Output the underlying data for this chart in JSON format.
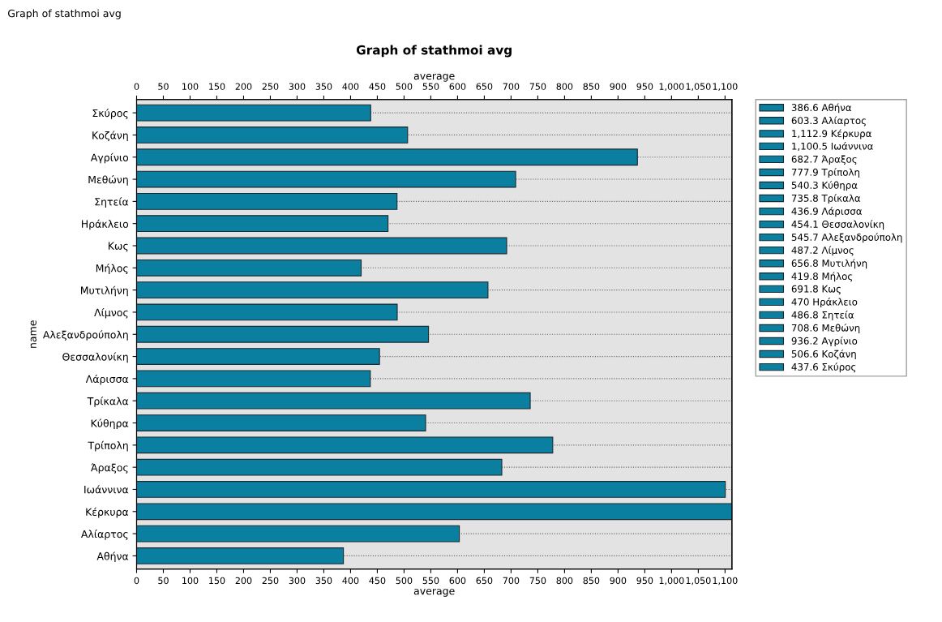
{
  "chart_data": {
    "type": "bar",
    "orientation": "horizontal",
    "title": "Graph of stathmoi avg",
    "xlabel": "average",
    "x2label": "average",
    "ylabel": "name",
    "annotations": [
      "Graph of stathmoi avg"
    ],
    "categories": [
      "Σκύρος",
      "Κοζάνη",
      "Αγρίνιο",
      "Μεθώνη",
      "Σητεία",
      "Ηράκλειο",
      "Κως",
      "Μήλος",
      "Μυτιλήνη",
      "Λίμνος",
      "Αλεξανδρούπολη",
      "Θεσσαλονίκη",
      "Λάρισσα",
      "Τρίκαλα",
      "Κύθηρα",
      "Τρίπολη",
      "Άραξος",
      "Ιωάννινα",
      "Κέρκυρα",
      "Αλίαρτος",
      "Αθήνα"
    ],
    "series": [
      {
        "name": "386.6 Αθήνα",
        "color": "#0a7fa0",
        "values": [
          null,
          null,
          null,
          null,
          null,
          null,
          null,
          null,
          null,
          null,
          null,
          null,
          null,
          null,
          null,
          null,
          null,
          null,
          null,
          null,
          386.6
        ]
      },
      {
        "name": "603.3 Αλίαρτος",
        "color": "#0a7fa0",
        "values": [
          null,
          null,
          null,
          null,
          null,
          null,
          null,
          null,
          null,
          null,
          null,
          null,
          null,
          null,
          null,
          null,
          null,
          null,
          null,
          603.3,
          null
        ]
      },
      {
        "name": "1,112.9 Κέρκυρα",
        "color": "#0a7fa0",
        "values": [
          null,
          null,
          null,
          null,
          null,
          null,
          null,
          null,
          null,
          null,
          null,
          null,
          null,
          null,
          null,
          null,
          null,
          null,
          1112.9,
          null,
          null
        ]
      },
      {
        "name": "1,100.5 Ιωάννινα",
        "color": "#0a7fa0",
        "values": [
          null,
          null,
          null,
          null,
          null,
          null,
          null,
          null,
          null,
          null,
          null,
          null,
          null,
          null,
          null,
          null,
          null,
          1100.5,
          null,
          null,
          null
        ]
      },
      {
        "name": "682.7 Άραξος",
        "color": "#0a7fa0",
        "values": [
          null,
          null,
          null,
          null,
          null,
          null,
          null,
          null,
          null,
          null,
          null,
          null,
          null,
          null,
          null,
          null,
          682.7,
          null,
          null,
          null,
          null
        ]
      },
      {
        "name": "777.9 Τρίπολη",
        "color": "#0a7fa0",
        "values": [
          null,
          null,
          null,
          null,
          null,
          null,
          null,
          null,
          null,
          null,
          null,
          null,
          null,
          null,
          null,
          777.9,
          null,
          null,
          null,
          null,
          null
        ]
      },
      {
        "name": "540.3 Κύθηρα",
        "color": "#0a7fa0",
        "values": [
          null,
          null,
          null,
          null,
          null,
          null,
          null,
          null,
          null,
          null,
          null,
          null,
          null,
          null,
          540.3,
          null,
          null,
          null,
          null,
          null,
          null
        ]
      },
      {
        "name": "735.8 Τρίκαλα",
        "color": "#0a7fa0",
        "values": [
          null,
          null,
          null,
          null,
          null,
          null,
          null,
          null,
          null,
          null,
          null,
          null,
          null,
          735.8,
          null,
          null,
          null,
          null,
          null,
          null,
          null
        ]
      },
      {
        "name": "436.9 Λάρισσα",
        "color": "#0a7fa0",
        "values": [
          null,
          null,
          null,
          null,
          null,
          null,
          null,
          null,
          null,
          null,
          null,
          null,
          436.9,
          null,
          null,
          null,
          null,
          null,
          null,
          null,
          null
        ]
      },
      {
        "name": "454.1 Θεσσαλονίκη",
        "color": "#0a7fa0",
        "values": [
          null,
          null,
          null,
          null,
          null,
          null,
          null,
          null,
          null,
          null,
          null,
          454.1,
          null,
          null,
          null,
          null,
          null,
          null,
          null,
          null,
          null
        ]
      },
      {
        "name": "545.7 Αλεξανδρούπολη",
        "color": "#0a7fa0",
        "values": [
          null,
          null,
          null,
          null,
          null,
          null,
          null,
          null,
          null,
          null,
          545.7,
          null,
          null,
          null,
          null,
          null,
          null,
          null,
          null,
          null,
          null
        ]
      },
      {
        "name": "487.2 Λίμνος",
        "color": "#0a7fa0",
        "values": [
          null,
          null,
          null,
          null,
          null,
          null,
          null,
          null,
          null,
          487.2,
          null,
          null,
          null,
          null,
          null,
          null,
          null,
          null,
          null,
          null,
          null
        ]
      },
      {
        "name": "656.8 Μυτιλήνη",
        "color": "#0a7fa0",
        "values": [
          null,
          null,
          null,
          null,
          null,
          null,
          null,
          null,
          656.8,
          null,
          null,
          null,
          null,
          null,
          null,
          null,
          null,
          null,
          null,
          null,
          null
        ]
      },
      {
        "name": "419.8 Μήλος",
        "color": "#0a7fa0",
        "values": [
          null,
          null,
          null,
          null,
          null,
          null,
          null,
          419.8,
          null,
          null,
          null,
          null,
          null,
          null,
          null,
          null,
          null,
          null,
          null,
          null,
          null
        ]
      },
      {
        "name": "691.8 Κως",
        "color": "#0a7fa0",
        "values": [
          null,
          null,
          null,
          null,
          null,
          null,
          691.8,
          null,
          null,
          null,
          null,
          null,
          null,
          null,
          null,
          null,
          null,
          null,
          null,
          null,
          null
        ]
      },
      {
        "name": "470 Ηράκλειο",
        "color": "#0a7fa0",
        "values": [
          null,
          null,
          null,
          null,
          null,
          470,
          null,
          null,
          null,
          null,
          null,
          null,
          null,
          null,
          null,
          null,
          null,
          null,
          null,
          null,
          null
        ]
      },
      {
        "name": "486.8 Σητεία",
        "color": "#0a7fa0",
        "values": [
          null,
          null,
          null,
          null,
          486.8,
          null,
          null,
          null,
          null,
          null,
          null,
          null,
          null,
          null,
          null,
          null,
          null,
          null,
          null,
          null,
          null
        ]
      },
      {
        "name": "708.6 Μεθώνη",
        "color": "#0a7fa0",
        "values": [
          null,
          null,
          null,
          708.6,
          null,
          null,
          null,
          null,
          null,
          null,
          null,
          null,
          null,
          null,
          null,
          null,
          null,
          null,
          null,
          null,
          null
        ]
      },
      {
        "name": "936.2 Αγρίνιο",
        "color": "#0a7fa0",
        "values": [
          null,
          null,
          936.2,
          null,
          null,
          null,
          null,
          null,
          null,
          null,
          null,
          null,
          null,
          null,
          null,
          null,
          null,
          null,
          null,
          null,
          null
        ]
      },
      {
        "name": "506.6 Κοζάνη",
        "color": "#0a7fa0",
        "values": [
          null,
          506.6,
          null,
          null,
          null,
          null,
          null,
          null,
          null,
          null,
          null,
          null,
          null,
          null,
          null,
          null,
          null,
          null,
          null,
          null,
          null
        ]
      },
      {
        "name": "437.6 Σκύρος",
        "color": "#0a7fa0",
        "values": [
          437.6,
          null,
          null,
          null,
          null,
          null,
          null,
          null,
          null,
          null,
          null,
          null,
          null,
          null,
          null,
          null,
          null,
          null,
          null,
          null,
          null
        ]
      }
    ],
    "xlim": [
      0,
      1112.9
    ],
    "xticks": [
      0,
      50,
      100,
      150,
      200,
      250,
      300,
      350,
      400,
      450,
      500,
      550,
      600,
      650,
      700,
      750,
      800,
      850,
      900,
      950,
      {
        "value": 1000,
        "label": "1,000"
      },
      {
        "value": 1050,
        "label": "1,050"
      },
      {
        "value": 1100,
        "label": "1,100"
      }
    ],
    "x2lim": [
      0,
      1112.9
    ],
    "x2ticks": [
      0,
      50,
      100,
      150,
      200,
      250,
      300,
      350,
      400,
      450,
      500,
      550,
      600,
      650,
      700,
      750,
      800,
      850,
      900,
      950,
      {
        "value": 1000,
        "label": "1,000"
      },
      {
        "value": 1050,
        "label": "1,050"
      },
      {
        "value": 1100,
        "label": "1,100"
      }
    ],
    "grid": "y",
    "legend": "right"
  }
}
